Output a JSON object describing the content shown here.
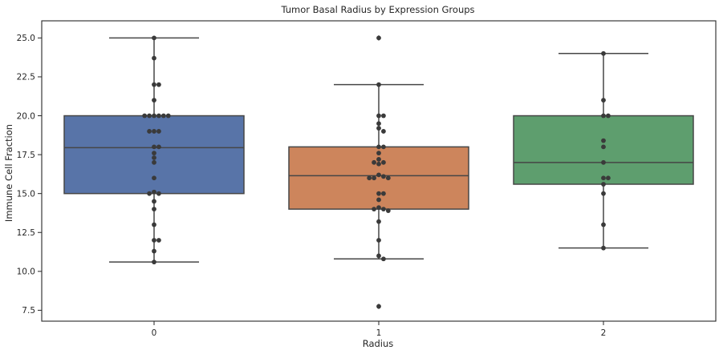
{
  "chart_data": {
    "type": "box",
    "title": "Tumor Basal Radius by Expression Groups",
    "xlabel": "Radius",
    "ylabel": "Immune Cell Fraction",
    "categories": [
      "0",
      "1",
      "2"
    ],
    "ylim": [
      6.8,
      26.1
    ],
    "yticks": [
      "7.5",
      "10.0",
      "12.5",
      "15.0",
      "17.5",
      "20.0",
      "22.5",
      "25.0"
    ],
    "grid": false,
    "colors": [
      "#5874a8",
      "#cd855c",
      "#5e9e6e"
    ],
    "boxes": [
      {
        "category": "0",
        "q1": 15.0,
        "median": 17.95,
        "q3": 20.0,
        "whisker_low": 10.6,
        "whisker_high": 25.0,
        "outliers": []
      },
      {
        "category": "1",
        "q1": 14.0,
        "median": 16.15,
        "q3": 18.0,
        "whisker_low": 10.8,
        "whisker_high": 22.0,
        "outliers": [
          25.0,
          7.75
        ]
      },
      {
        "category": "2",
        "q1": 15.6,
        "median": 17.0,
        "q3": 20.0,
        "whisker_low": 11.5,
        "whisker_high": 24.0,
        "outliers": []
      }
    ],
    "points": [
      {
        "category": "0",
        "values": [
          25.0,
          23.7,
          22.0,
          22.0,
          21.0,
          20.0,
          20.0,
          20.0,
          20.0,
          20.0,
          20.0,
          19.0,
          19.0,
          19.0,
          18.0,
          18.0,
          17.6,
          17.3,
          17.0,
          16.0,
          15.1,
          15.0,
          15.0,
          14.5,
          14.0,
          13.0,
          12.0,
          12.0,
          11.3,
          10.6
        ]
      },
      {
        "category": "1",
        "values": [
          25.0,
          22.0,
          20.0,
          20.0,
          19.5,
          19.2,
          19.0,
          18.0,
          18.0,
          17.6,
          17.2,
          17.0,
          17.0,
          16.9,
          16.2,
          16.1,
          16.0,
          16.0,
          16.0,
          15.0,
          15.0,
          14.6,
          14.1,
          14.0,
          14.0,
          13.9,
          13.2,
          12.0,
          11.0,
          10.8,
          7.75
        ]
      },
      {
        "category": "2",
        "values": [
          24.0,
          21.0,
          20.0,
          20.0,
          18.4,
          18.0,
          17.0,
          16.0,
          16.0,
          15.6,
          15.0,
          13.0,
          11.5
        ]
      }
    ]
  }
}
